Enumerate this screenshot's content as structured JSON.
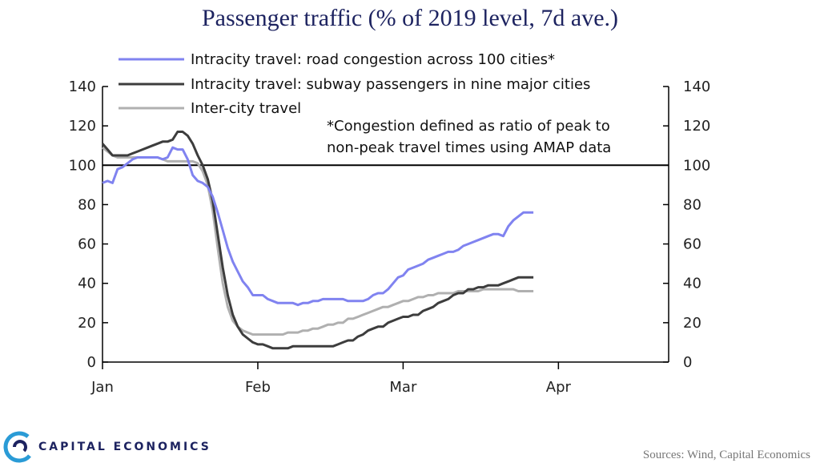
{
  "title": "Passenger traffic (% of 2019 level, 7d ave.)",
  "note": [
    "*Congestion defined as ratio of peak to",
    "non-peak travel times using AMAP data"
  ],
  "brand": "CAPITAL ECONOMICS",
  "source": "Sources: Wind, Capital Economics",
  "colors": {
    "road": "#8083f0",
    "subway": "#3d3d3d",
    "intercity": "#b0b0b0",
    "reference": "#000000"
  },
  "chart_data": {
    "type": "line",
    "x_unit": "day of year 2020 (Jan 1 = 0)",
    "xlim": [
      0,
      113
    ],
    "x_ticks": [
      {
        "label": "Jan",
        "x": 0
      },
      {
        "label": "Feb",
        "x": 31
      },
      {
        "label": "Mar",
        "x": 60
      },
      {
        "label": "Apr",
        "x": 91
      }
    ],
    "ylim": [
      0,
      140
    ],
    "y_ticks": [
      0,
      20,
      40,
      60,
      80,
      100,
      120,
      140
    ],
    "y_ticks_right": [
      0,
      20,
      40,
      60,
      80,
      100,
      120,
      140
    ],
    "reference_line": 100,
    "legend_position": "top-left",
    "series": [
      {
        "name": "Intracity travel: road congestion across 100 cities*",
        "color_key": "road",
        "points": [
          [
            0,
            91
          ],
          [
            1,
            92
          ],
          [
            2,
            91
          ],
          [
            3,
            98
          ],
          [
            4,
            99
          ],
          [
            5,
            101
          ],
          [
            6,
            103
          ],
          [
            7,
            104
          ],
          [
            8,
            104
          ],
          [
            9,
            104
          ],
          [
            10,
            104
          ],
          [
            11,
            104
          ],
          [
            12,
            103
          ],
          [
            13,
            104
          ],
          [
            14,
            109
          ],
          [
            15,
            108
          ],
          [
            16,
            108
          ],
          [
            17,
            103
          ],
          [
            18,
            95
          ],
          [
            19,
            92
          ],
          [
            20,
            91
          ],
          [
            21,
            89
          ],
          [
            22,
            84
          ],
          [
            23,
            76
          ],
          [
            24,
            67
          ],
          [
            25,
            58
          ],
          [
            26,
            51
          ],
          [
            27,
            46
          ],
          [
            28,
            41
          ],
          [
            29,
            38
          ],
          [
            30,
            34
          ],
          [
            31,
            34
          ],
          [
            32,
            34
          ],
          [
            33,
            32
          ],
          [
            34,
            31
          ],
          [
            35,
            30
          ],
          [
            36,
            30
          ],
          [
            37,
            30
          ],
          [
            38,
            30
          ],
          [
            39,
            29
          ],
          [
            40,
            30
          ],
          [
            41,
            30
          ],
          [
            42,
            31
          ],
          [
            43,
            31
          ],
          [
            44,
            32
          ],
          [
            45,
            32
          ],
          [
            46,
            32
          ],
          [
            47,
            32
          ],
          [
            48,
            32
          ],
          [
            49,
            31
          ],
          [
            50,
            31
          ],
          [
            51,
            31
          ],
          [
            52,
            31
          ],
          [
            53,
            32
          ],
          [
            54,
            34
          ],
          [
            55,
            35
          ],
          [
            56,
            35
          ],
          [
            57,
            37
          ],
          [
            58,
            40
          ],
          [
            59,
            43
          ],
          [
            60,
            44
          ],
          [
            61,
            47
          ],
          [
            62,
            48
          ],
          [
            63,
            49
          ],
          [
            64,
            50
          ],
          [
            65,
            52
          ],
          [
            66,
            53
          ],
          [
            67,
            54
          ],
          [
            68,
            55
          ],
          [
            69,
            56
          ],
          [
            70,
            56
          ],
          [
            71,
            57
          ],
          [
            72,
            59
          ],
          [
            73,
            60
          ],
          [
            74,
            61
          ],
          [
            75,
            62
          ],
          [
            76,
            63
          ],
          [
            77,
            64
          ],
          [
            78,
            65
          ],
          [
            79,
            65
          ],
          [
            80,
            64
          ],
          [
            81,
            69
          ],
          [
            82,
            72
          ],
          [
            83,
            74
          ],
          [
            84,
            76
          ],
          [
            85,
            76
          ],
          [
            86,
            76
          ]
        ]
      },
      {
        "name": "Intracity travel: subway passengers in nine major cities",
        "color_key": "subway",
        "points": [
          [
            0,
            111
          ],
          [
            1,
            108
          ],
          [
            2,
            105
          ],
          [
            3,
            105
          ],
          [
            4,
            105
          ],
          [
            5,
            105
          ],
          [
            6,
            106
          ],
          [
            7,
            107
          ],
          [
            8,
            108
          ],
          [
            9,
            109
          ],
          [
            10,
            110
          ],
          [
            11,
            111
          ],
          [
            12,
            112
          ],
          [
            13,
            112
          ],
          [
            14,
            113
          ],
          [
            15,
            117
          ],
          [
            16,
            117
          ],
          [
            17,
            115
          ],
          [
            18,
            111
          ],
          [
            19,
            105
          ],
          [
            20,
            100
          ],
          [
            21,
            93
          ],
          [
            22,
            82
          ],
          [
            23,
            65
          ],
          [
            24,
            48
          ],
          [
            25,
            34
          ],
          [
            26,
            24
          ],
          [
            27,
            18
          ],
          [
            28,
            14
          ],
          [
            29,
            12
          ],
          [
            30,
            10
          ],
          [
            31,
            9
          ],
          [
            32,
            9
          ],
          [
            33,
            8
          ],
          [
            34,
            7
          ],
          [
            35,
            7
          ],
          [
            36,
            7
          ],
          [
            37,
            7
          ],
          [
            38,
            8
          ],
          [
            39,
            8
          ],
          [
            40,
            8
          ],
          [
            41,
            8
          ],
          [
            42,
            8
          ],
          [
            43,
            8
          ],
          [
            44,
            8
          ],
          [
            45,
            8
          ],
          [
            46,
            8
          ],
          [
            47,
            9
          ],
          [
            48,
            10
          ],
          [
            49,
            11
          ],
          [
            50,
            11
          ],
          [
            51,
            13
          ],
          [
            52,
            14
          ],
          [
            53,
            16
          ],
          [
            54,
            17
          ],
          [
            55,
            18
          ],
          [
            56,
            18
          ],
          [
            57,
            20
          ],
          [
            58,
            21
          ],
          [
            59,
            22
          ],
          [
            60,
            23
          ],
          [
            61,
            23
          ],
          [
            62,
            24
          ],
          [
            63,
            24
          ],
          [
            64,
            26
          ],
          [
            65,
            27
          ],
          [
            66,
            28
          ],
          [
            67,
            30
          ],
          [
            68,
            31
          ],
          [
            69,
            32
          ],
          [
            70,
            34
          ],
          [
            71,
            35
          ],
          [
            72,
            35
          ],
          [
            73,
            37
          ],
          [
            74,
            37
          ],
          [
            75,
            38
          ],
          [
            76,
            38
          ],
          [
            77,
            39
          ],
          [
            78,
            39
          ],
          [
            79,
            39
          ],
          [
            80,
            40
          ],
          [
            81,
            41
          ],
          [
            82,
            42
          ],
          [
            83,
            43
          ],
          [
            84,
            43
          ],
          [
            85,
            43
          ],
          [
            86,
            43
          ]
        ]
      },
      {
        "name": "Inter-city travel",
        "color_key": "intercity",
        "points": [
          [
            0,
            109
          ],
          [
            1,
            107
          ],
          [
            2,
            105
          ],
          [
            3,
            104
          ],
          [
            4,
            104
          ],
          [
            5,
            104
          ],
          [
            6,
            104
          ],
          [
            7,
            104
          ],
          [
            8,
            104
          ],
          [
            9,
            104
          ],
          [
            10,
            104
          ],
          [
            11,
            104
          ],
          [
            12,
            103
          ],
          [
            13,
            102
          ],
          [
            14,
            102
          ],
          [
            15,
            102
          ],
          [
            16,
            102
          ],
          [
            17,
            102
          ],
          [
            18,
            102
          ],
          [
            19,
            101
          ],
          [
            20,
            97
          ],
          [
            21,
            90
          ],
          [
            22,
            77
          ],
          [
            23,
            58
          ],
          [
            24,
            40
          ],
          [
            25,
            28
          ],
          [
            26,
            21
          ],
          [
            27,
            18
          ],
          [
            28,
            16
          ],
          [
            29,
            15
          ],
          [
            30,
            14
          ],
          [
            31,
            14
          ],
          [
            32,
            14
          ],
          [
            33,
            14
          ],
          [
            34,
            14
          ],
          [
            35,
            14
          ],
          [
            36,
            14
          ],
          [
            37,
            15
          ],
          [
            38,
            15
          ],
          [
            39,
            15
          ],
          [
            40,
            16
          ],
          [
            41,
            16
          ],
          [
            42,
            17
          ],
          [
            43,
            17
          ],
          [
            44,
            18
          ],
          [
            45,
            19
          ],
          [
            46,
            19
          ],
          [
            47,
            20
          ],
          [
            48,
            20
          ],
          [
            49,
            22
          ],
          [
            50,
            22
          ],
          [
            51,
            23
          ],
          [
            52,
            24
          ],
          [
            53,
            25
          ],
          [
            54,
            26
          ],
          [
            55,
            27
          ],
          [
            56,
            28
          ],
          [
            57,
            28
          ],
          [
            58,
            29
          ],
          [
            59,
            30
          ],
          [
            60,
            31
          ],
          [
            61,
            31
          ],
          [
            62,
            32
          ],
          [
            63,
            33
          ],
          [
            64,
            33
          ],
          [
            65,
            34
          ],
          [
            66,
            34
          ],
          [
            67,
            35
          ],
          [
            68,
            35
          ],
          [
            69,
            35
          ],
          [
            70,
            35
          ],
          [
            71,
            36
          ],
          [
            72,
            36
          ],
          [
            73,
            36
          ],
          [
            74,
            36
          ],
          [
            75,
            36
          ],
          [
            76,
            37
          ],
          [
            77,
            37
          ],
          [
            78,
            37
          ],
          [
            79,
            37
          ],
          [
            80,
            37
          ],
          [
            81,
            37
          ],
          [
            82,
            37
          ],
          [
            83,
            36
          ],
          [
            84,
            36
          ],
          [
            85,
            36
          ],
          [
            86,
            36
          ]
        ]
      }
    ]
  }
}
